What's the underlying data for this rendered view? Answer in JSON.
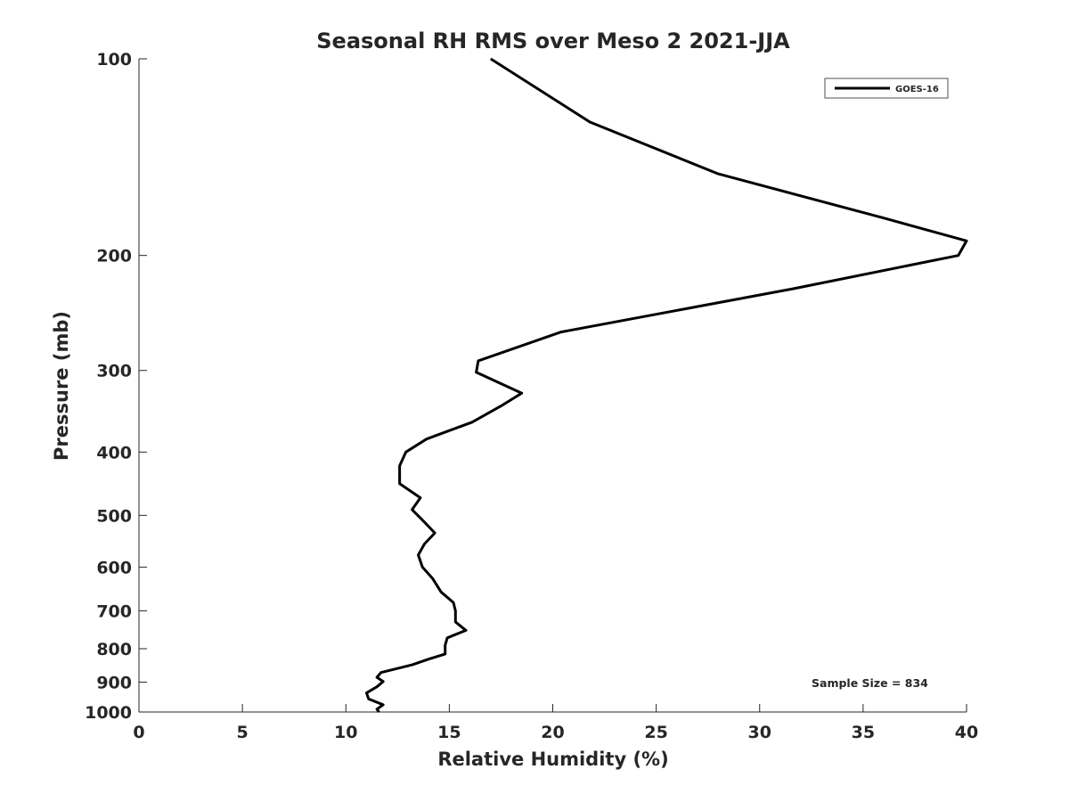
{
  "chart_data": {
    "type": "line",
    "title": "Seasonal RH RMS over Meso 2  2021-JJA",
    "xlabel": "Relative Humidity (%)",
    "ylabel": "Pressure (mb)",
    "xlim": [
      0,
      40
    ],
    "ylim": [
      100,
      1000
    ],
    "y_scale": "log",
    "y_reversed": true,
    "x_ticks": [
      0,
      5,
      10,
      15,
      20,
      25,
      30,
      35,
      40
    ],
    "y_ticks": [
      100,
      200,
      300,
      400,
      500,
      600,
      700,
      800,
      900,
      1000
    ],
    "grid": false,
    "legend_position": "top-right",
    "annotation": "Sample Size = 834",
    "series": [
      {
        "name": "GOES-16",
        "color": "#000000",
        "points": [
          [
            17.0,
            100
          ],
          [
            21.8,
            125
          ],
          [
            28.0,
            150
          ],
          [
            35.9,
            175
          ],
          [
            40.0,
            190
          ],
          [
            39.6,
            200
          ],
          [
            31.6,
            225
          ],
          [
            20.4,
            262
          ],
          [
            16.4,
            290
          ],
          [
            16.3,
            302
          ],
          [
            18.5,
            325
          ],
          [
            17.5,
            340
          ],
          [
            16.1,
            360
          ],
          [
            13.9,
            382
          ],
          [
            12.9,
            400
          ],
          [
            12.6,
            420
          ],
          [
            12.6,
            447
          ],
          [
            13.6,
            470
          ],
          [
            13.2,
            490
          ],
          [
            13.8,
            512
          ],
          [
            14.3,
            532
          ],
          [
            13.8,
            553
          ],
          [
            13.5,
            575
          ],
          [
            13.7,
            600
          ],
          [
            14.2,
            625
          ],
          [
            14.6,
            655
          ],
          [
            15.2,
            680
          ],
          [
            15.3,
            700
          ],
          [
            15.3,
            728
          ],
          [
            15.8,
            750
          ],
          [
            14.9,
            770
          ],
          [
            14.8,
            790
          ],
          [
            14.8,
            815
          ],
          [
            14.0,
            830
          ],
          [
            13.2,
            847
          ],
          [
            11.7,
            870
          ],
          [
            11.5,
            885
          ],
          [
            11.8,
            898
          ],
          [
            11.5,
            915
          ],
          [
            11.0,
            935
          ],
          [
            11.1,
            955
          ],
          [
            11.8,
            975
          ],
          [
            11.5,
            990
          ],
          [
            11.6,
            1000
          ]
        ]
      }
    ]
  }
}
